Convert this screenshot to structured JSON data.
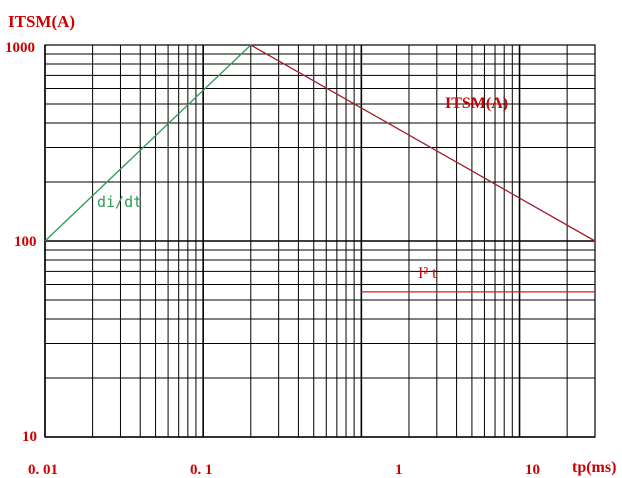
{
  "chart_data": {
    "type": "line",
    "title": "",
    "ylabel": "ITSM(A)",
    "xlabel": "tp(ms)",
    "x_scale": "log",
    "y_scale": "log",
    "xlim": [
      0.01,
      30
    ],
    "ylim": [
      10,
      1000
    ],
    "grid": true,
    "x_ticks": [
      {
        "value": 0.01,
        "label": "0. 01"
      },
      {
        "value": 0.1,
        "label": "0. 1"
      },
      {
        "value": 1,
        "label": "1"
      },
      {
        "value": 10,
        "label": "10"
      }
    ],
    "y_ticks": [
      {
        "value": 10,
        "label": "10"
      },
      {
        "value": 100,
        "label": "100"
      },
      {
        "value": 1000,
        "label": "1000"
      }
    ],
    "series": [
      {
        "name": "ITSM(A)",
        "color": "#a02030",
        "x": [
          0.2,
          30
        ],
        "y": [
          1000,
          100
        ]
      },
      {
        "name": "di/dt",
        "color": "#2e9a55",
        "x": [
          0.01,
          0.2
        ],
        "y": [
          100,
          1000
        ]
      },
      {
        "name": "I² t",
        "color": "#d02020",
        "x": [
          1,
          30
        ],
        "y": [
          55,
          55
        ]
      }
    ],
    "colors": {
      "grid": "#000000",
      "labels": "#cc0000"
    }
  }
}
